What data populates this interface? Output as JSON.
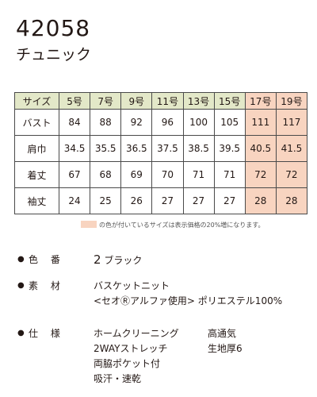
{
  "product": {
    "code": "42058",
    "name": "チュニック"
  },
  "size_table": {
    "header_label": "サイズ",
    "sizes": [
      "5号",
      "7号",
      "9号",
      "11号",
      "13号",
      "15号",
      "17号",
      "19号"
    ],
    "rows": [
      {
        "label": "バスト",
        "values": [
          "84",
          "88",
          "92",
          "96",
          "100",
          "105",
          "111",
          "117"
        ]
      },
      {
        "label": "肩巾",
        "values": [
          "34.5",
          "35.5",
          "36.5",
          "37.5",
          "38.5",
          "39.5",
          "40.5",
          "41.5"
        ]
      },
      {
        "label": "着丈",
        "values": [
          "67",
          "68",
          "69",
          "70",
          "71",
          "71",
          "72",
          "72"
        ]
      },
      {
        "label": "袖丈",
        "values": [
          "24",
          "25",
          "26",
          "27",
          "27",
          "27",
          "28",
          "28"
        ]
      }
    ],
    "highlight_color": "#f8d4c0",
    "header_color": "#e3e8c8"
  },
  "legend": {
    "text": "の色が付いているサイズは表示価格の20%増になります。"
  },
  "specs": {
    "color": {
      "label": "色 番",
      "number": "2",
      "value": "ブラック"
    },
    "material": {
      "label": "素 材",
      "line1": "バスケットニット",
      "line2": "<セオⓇアルファ使用> ポリエステル100%"
    },
    "features": {
      "label": "仕 様",
      "col1": [
        "ホームクリーニング",
        "2WAYストレッチ",
        "両脇ポケット付",
        "吸汗・速乾"
      ],
      "col2": [
        "高通気",
        "生地厚6"
      ]
    },
    "bullet": "●"
  }
}
